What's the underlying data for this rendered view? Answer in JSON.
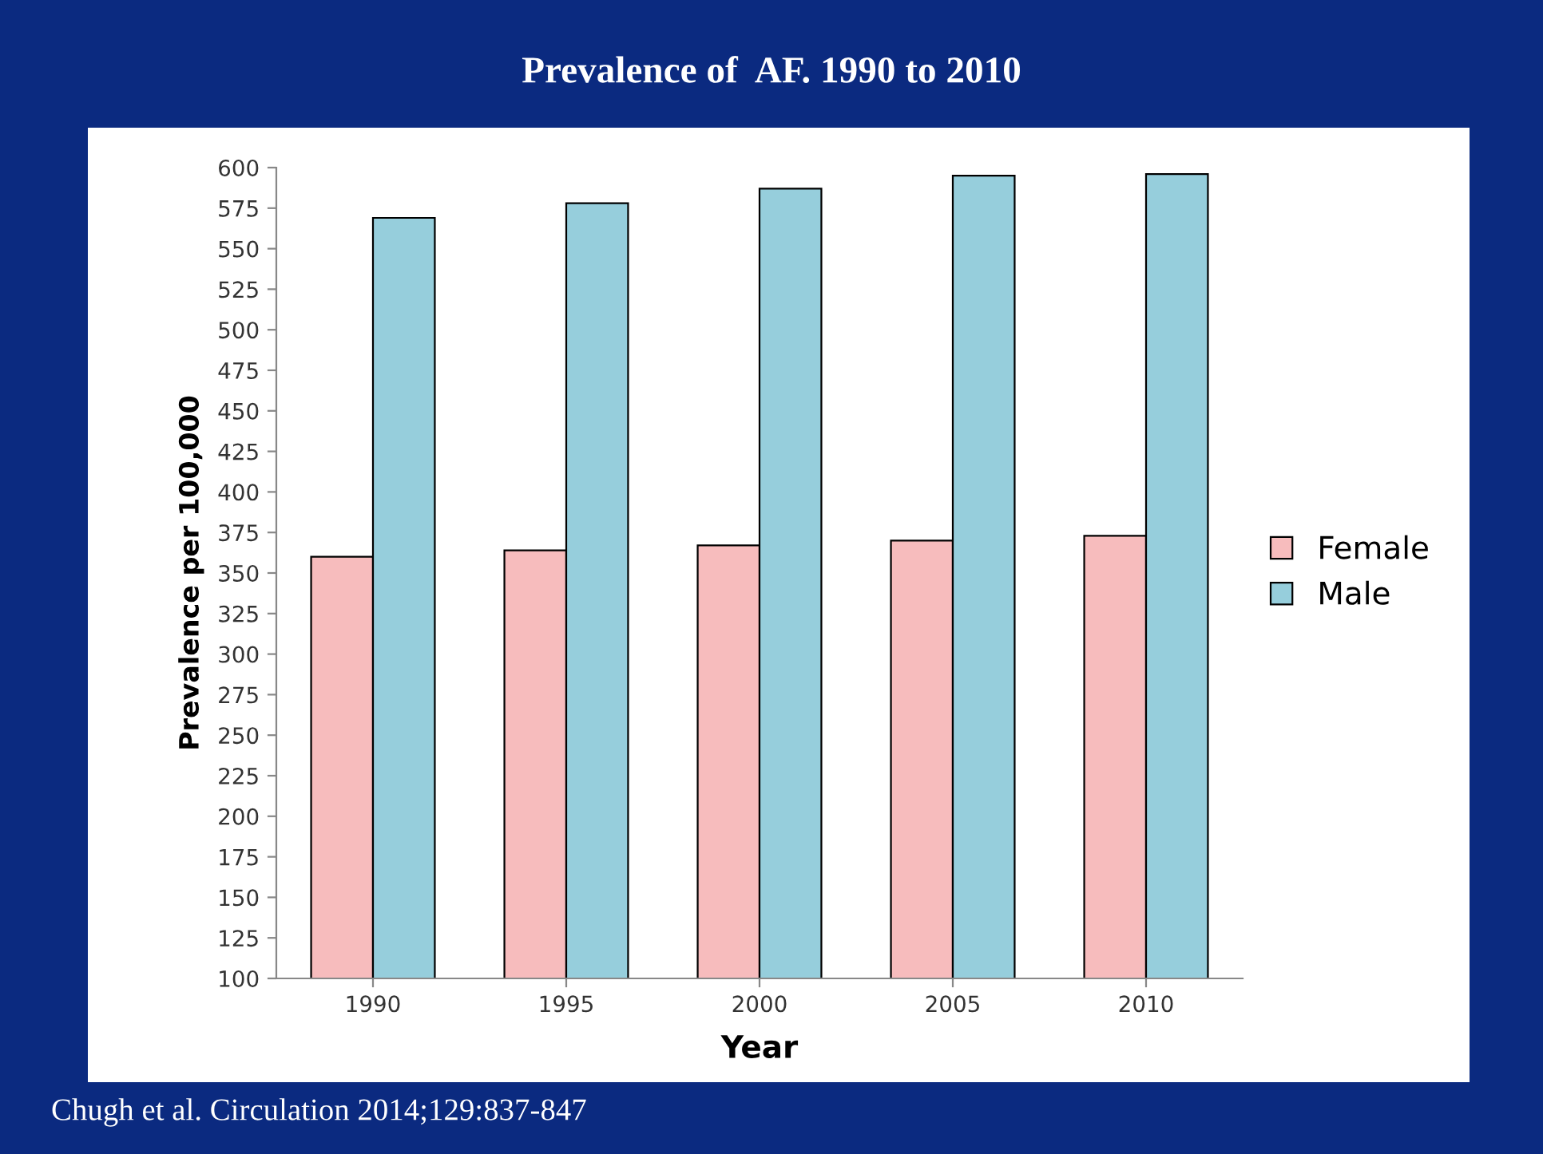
{
  "chart_data": {
    "type": "bar",
    "title": "Prevalence of  AF. 1990 to 2010",
    "xlabel": "Year",
    "ylabel": "Prevalence per 100,000",
    "categories": [
      "1990",
      "1995",
      "2000",
      "2005",
      "2010"
    ],
    "series": [
      {
        "name": "Female",
        "color": "#f7bcbd",
        "values": [
          360,
          364,
          367,
          370,
          373
        ]
      },
      {
        "name": "Male",
        "color": "#96cedc",
        "values": [
          569,
          578,
          587,
          595,
          596
        ]
      }
    ],
    "ylim": [
      100,
      600
    ],
    "yticks": [
      100,
      125,
      150,
      175,
      200,
      225,
      250,
      275,
      300,
      325,
      350,
      375,
      400,
      425,
      450,
      475,
      500,
      525,
      550,
      575,
      600
    ],
    "grid": false,
    "legend": "right",
    "annotations": [
      "Chugh et al. Circulation 2014;129:837-847"
    ]
  }
}
